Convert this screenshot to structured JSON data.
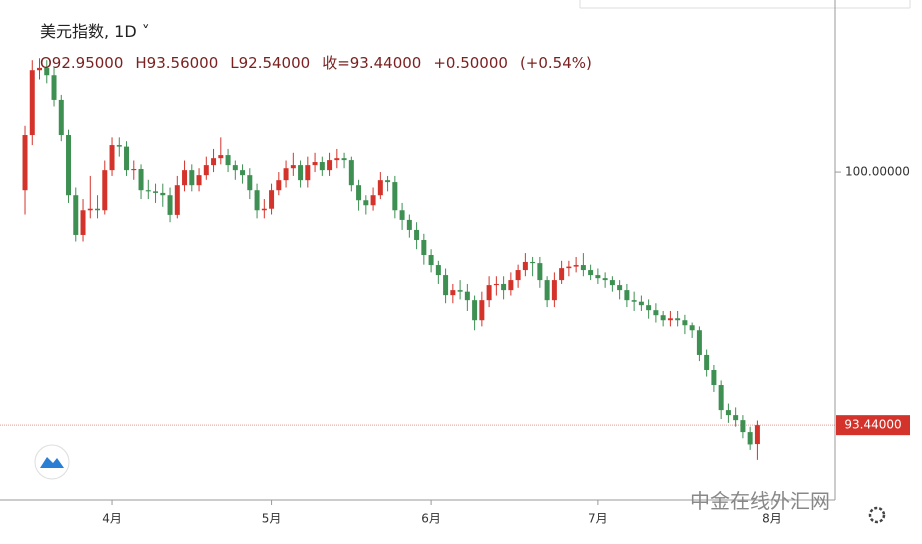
{
  "chart_data": {
    "type": "candlestick",
    "title": "美元指数, 1D",
    "ohlc_legend": [
      "O92.95000",
      "H93.56000",
      "L92.54000",
      "收=93.44000",
      "+0.50000",
      "(+0.54%)"
    ],
    "watermark": "中金在线外汇网",
    "up_color": "#d4332b",
    "down_color": "#3d8f52",
    "open": [
      99.53,
      100.96,
      102.64,
      102.7,
      102.51,
      101.87,
      100.96,
      99.4,
      98.37,
      99.01,
      99.05,
      99.01,
      100.05,
      100.7,
      100.66,
      100.05,
      100.08,
      99.53,
      99.5,
      99.46,
      99.4,
      98.89,
      99.66,
      100.05,
      99.66,
      99.92,
      100.18,
      100.36,
      100.44,
      100.18,
      100.05,
      99.92,
      99.53,
      99.01,
      99.05,
      99.53,
      99.79,
      100.1,
      100.18,
      99.79,
      100.18,
      100.26,
      100.05,
      100.31,
      100.36,
      100.31,
      99.66,
      99.27,
      99.14,
      99.4,
      99.79,
      99.74,
      99.01,
      98.76,
      98.5,
      98.24,
      97.85,
      97.59,
      97.33,
      96.81,
      96.94,
      96.9,
      96.68,
      96.16,
      96.68,
      97.07,
      97.1,
      96.94,
      97.2,
      97.46,
      97.67,
      97.64,
      97.2,
      96.68,
      97.2,
      97.51,
      97.55,
      97.59,
      97.46,
      97.33,
      97.25,
      97.2,
      97.07,
      96.94,
      96.68,
      96.64,
      96.55,
      96.42,
      96.29,
      96.16,
      96.21,
      96.16,
      96.03,
      95.9,
      95.26,
      94.87,
      94.48,
      93.83,
      93.7,
      93.57,
      93.26,
      92.95
    ],
    "high": [
      101.2,
      102.9,
      102.95,
      102.9,
      102.7,
      102.0,
      101.1,
      99.6,
      99.3,
      99.9,
      99.4,
      100.3,
      100.9,
      100.9,
      100.8,
      100.3,
      100.2,
      99.8,
      99.7,
      99.7,
      99.6,
      99.9,
      100.3,
      100.2,
      100.1,
      100.4,
      100.6,
      100.9,
      100.6,
      100.3,
      100.2,
      100.1,
      99.7,
      99.3,
      99.7,
      100.0,
      100.3,
      100.5,
      100.3,
      100.4,
      100.5,
      100.4,
      100.5,
      100.6,
      100.5,
      100.4,
      99.8,
      99.4,
      99.6,
      100.0,
      99.9,
      99.9,
      99.2,
      98.9,
      98.7,
      98.4,
      98.0,
      97.7,
      97.5,
      97.1,
      97.2,
      97.1,
      96.8,
      96.9,
      97.3,
      97.3,
      97.3,
      97.4,
      97.6,
      97.9,
      97.8,
      97.8,
      97.3,
      97.4,
      97.7,
      97.7,
      97.8,
      97.9,
      97.6,
      97.5,
      97.4,
      97.3,
      97.2,
      97.1,
      96.9,
      96.8,
      96.7,
      96.6,
      96.4,
      96.4,
      96.4,
      96.3,
      96.1,
      96.0,
      95.4,
      95.0,
      94.6,
      94.0,
      93.9,
      93.7,
      93.4,
      93.56
    ],
    "low": [
      98.9,
      100.7,
      102.4,
      102.3,
      101.7,
      100.8,
      99.2,
      98.2,
      98.2,
      98.8,
      98.8,
      98.9,
      99.9,
      100.4,
      99.9,
      99.8,
      99.3,
      99.3,
      99.2,
      99.1,
      98.7,
      98.8,
      99.5,
      99.5,
      99.5,
      99.8,
      100.0,
      100.2,
      100.0,
      99.8,
      99.7,
      99.3,
      98.8,
      98.8,
      98.9,
      99.4,
      99.6,
      99.9,
      99.6,
      99.6,
      100.0,
      99.9,
      99.9,
      100.1,
      100.1,
      99.5,
      99.0,
      98.9,
      99.0,
      99.3,
      99.5,
      98.8,
      98.5,
      98.3,
      98.0,
      97.6,
      97.4,
      97.1,
      96.6,
      96.6,
      96.7,
      96.4,
      95.9,
      96.0,
      96.5,
      96.8,
      96.7,
      96.8,
      97.0,
      97.3,
      97.3,
      97.0,
      96.5,
      96.5,
      97.1,
      97.3,
      97.4,
      97.3,
      97.2,
      97.1,
      97.0,
      96.9,
      96.7,
      96.5,
      96.4,
      96.4,
      96.2,
      96.1,
      96.0,
      96.0,
      96.0,
      95.8,
      95.7,
      95.1,
      94.7,
      94.3,
      93.6,
      93.5,
      93.4,
      93.1,
      92.8,
      92.54
    ],
    "close": [
      100.96,
      102.64,
      102.7,
      102.51,
      101.87,
      100.96,
      99.4,
      98.37,
      99.01,
      99.05,
      99.01,
      100.05,
      100.7,
      100.66,
      100.05,
      100.08,
      99.53,
      99.5,
      99.46,
      99.4,
      98.89,
      99.66,
      100.05,
      99.66,
      99.92,
      100.18,
      100.36,
      100.44,
      100.18,
      100.05,
      99.92,
      99.53,
      99.01,
      99.05,
      99.53,
      99.79,
      100.1,
      100.18,
      99.79,
      100.18,
      100.26,
      100.05,
      100.31,
      100.36,
      100.31,
      99.66,
      99.27,
      99.14,
      99.4,
      99.79,
      99.74,
      99.01,
      98.76,
      98.5,
      98.24,
      97.85,
      97.59,
      97.33,
      96.81,
      96.94,
      96.9,
      96.68,
      96.16,
      96.68,
      97.07,
      97.1,
      96.94,
      97.2,
      97.46,
      97.67,
      97.64,
      97.2,
      96.68,
      97.2,
      97.51,
      97.55,
      97.59,
      97.46,
      97.33,
      97.25,
      97.2,
      97.07,
      96.94,
      96.68,
      96.64,
      96.55,
      96.42,
      96.29,
      96.16,
      96.21,
      96.16,
      96.03,
      95.9,
      95.26,
      94.87,
      94.48,
      93.83,
      93.7,
      93.57,
      93.26,
      92.94,
      93.44
    ],
    "xlim": [
      -3.45,
      111.7
    ],
    "xticks": [
      {
        "value": 12,
        "label": "4月"
      },
      {
        "value": 34,
        "label": "5月"
      },
      {
        "value": 56,
        "label": "6月"
      },
      {
        "value": 79,
        "label": "7月"
      },
      {
        "value": 103,
        "label": "8月"
      }
    ],
    "ylim": [
      91.5,
      104.46
    ],
    "yticks": [
      {
        "value": 100,
        "label": "100.00000"
      }
    ],
    "last_price": {
      "value": 93.44,
      "label": "93.44000"
    }
  }
}
